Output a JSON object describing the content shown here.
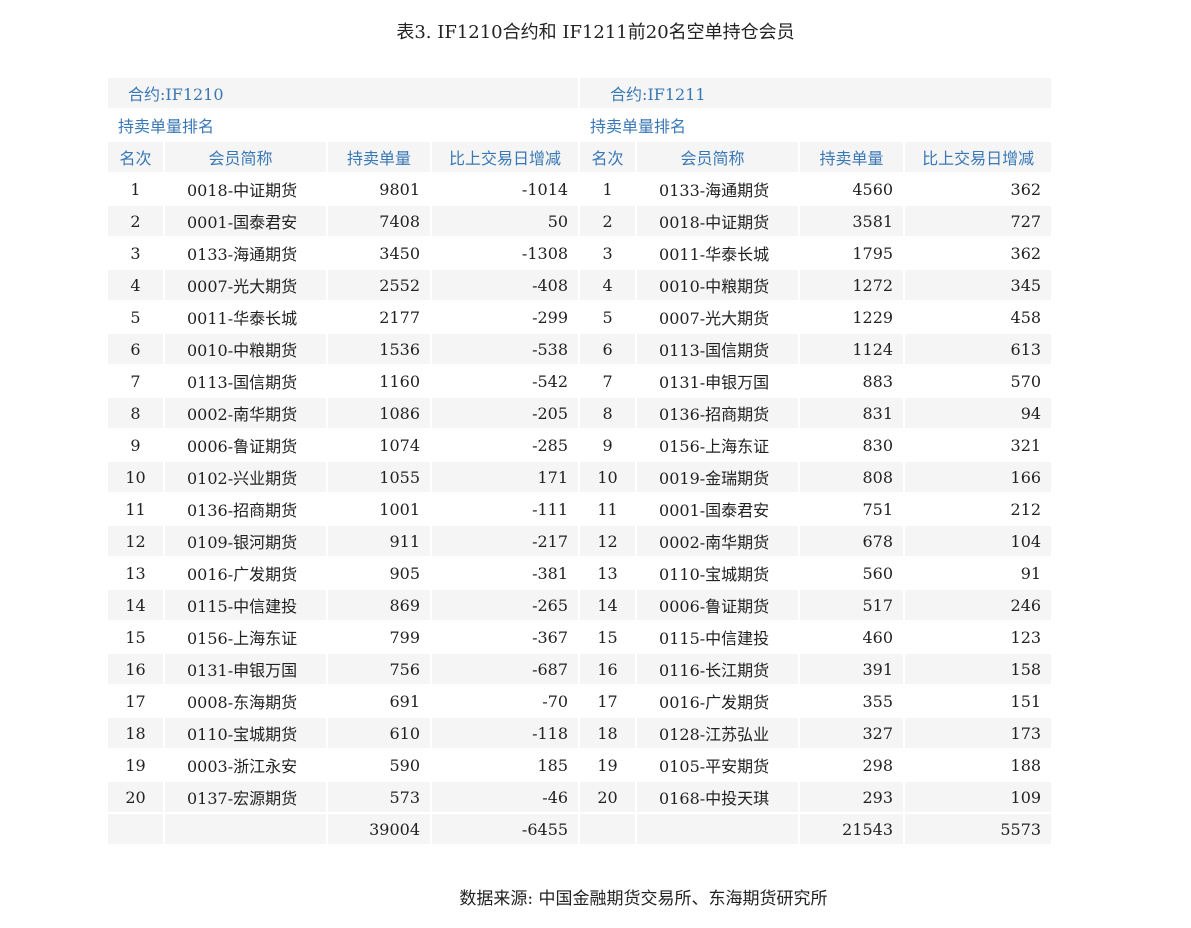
{
  "title": "表3. IF1210合约和 IF1211前20名空单持仓会员",
  "left": {
    "contract": "合约:IF1210",
    "section": "持卖单量排名"
  },
  "right": {
    "contract": "合约:IF1211",
    "section": "持卖单量排名"
  },
  "headers": [
    "名次",
    "会员简称",
    "持卖单量",
    "比上交易日增减"
  ],
  "rows": [
    [
      "1",
      "0018-中证期货",
      "9801",
      "-1014",
      "1",
      "0133-海通期货",
      "4560",
      "362"
    ],
    [
      "2",
      "0001-国泰君安",
      "7408",
      "50",
      "2",
      "0018-中证期货",
      "3581",
      "727"
    ],
    [
      "3",
      "0133-海通期货",
      "3450",
      "-1308",
      "3",
      "0011-华泰长城",
      "1795",
      "362"
    ],
    [
      "4",
      "0007-光大期货",
      "2552",
      "-408",
      "4",
      "0010-中粮期货",
      "1272",
      "345"
    ],
    [
      "5",
      "0011-华泰长城",
      "2177",
      "-299",
      "5",
      "0007-光大期货",
      "1229",
      "458"
    ],
    [
      "6",
      "0010-中粮期货",
      "1536",
      "-538",
      "6",
      "0113-国信期货",
      "1124",
      "613"
    ],
    [
      "7",
      "0113-国信期货",
      "1160",
      "-542",
      "7",
      "0131-申银万国",
      "883",
      "570"
    ],
    [
      "8",
      "0002-南华期货",
      "1086",
      "-205",
      "8",
      "0136-招商期货",
      "831",
      "94"
    ],
    [
      "9",
      "0006-鲁证期货",
      "1074",
      "-285",
      "9",
      "0156-上海东证",
      "830",
      "321"
    ],
    [
      "10",
      "0102-兴业期货",
      "1055",
      "171",
      "10",
      "0019-金瑞期货",
      "808",
      "166"
    ],
    [
      "11",
      "0136-招商期货",
      "1001",
      "-111",
      "11",
      "0001-国泰君安",
      "751",
      "212"
    ],
    [
      "12",
      "0109-银河期货",
      "911",
      "-217",
      "12",
      "0002-南华期货",
      "678",
      "104"
    ],
    [
      "13",
      "0016-广发期货",
      "905",
      "-381",
      "13",
      "0110-宝城期货",
      "560",
      "91"
    ],
    [
      "14",
      "0115-中信建投",
      "869",
      "-265",
      "14",
      "0006-鲁证期货",
      "517",
      "246"
    ],
    [
      "15",
      "0156-上海东证",
      "799",
      "-367",
      "15",
      "0115-中信建投",
      "460",
      "123"
    ],
    [
      "16",
      "0131-申银万国",
      "756",
      "-687",
      "16",
      "0116-长江期货",
      "391",
      "158"
    ],
    [
      "17",
      "0008-东海期货",
      "691",
      "-70",
      "17",
      "0016-广发期货",
      "355",
      "151"
    ],
    [
      "18",
      "0110-宝城期货",
      "610",
      "-118",
      "18",
      "0128-江苏弘业",
      "327",
      "173"
    ],
    [
      "19",
      "0003-浙江永安",
      "590",
      "185",
      "19",
      "0105-平安期货",
      "298",
      "188"
    ],
    [
      "20",
      "0137-宏源期货",
      "573",
      "-46",
      "20",
      "0168-中投天琪",
      "293",
      "109"
    ]
  ],
  "totals": [
    "",
    "",
    "39004",
    "-6455",
    "",
    "",
    "21543",
    "5573"
  ],
  "source": "数据来源: 中国金融期货交易所、东海期货研究所"
}
